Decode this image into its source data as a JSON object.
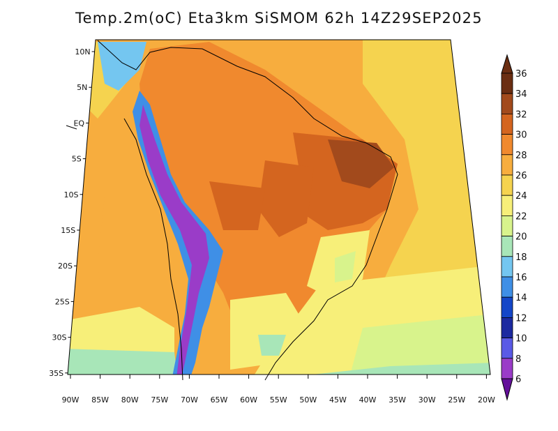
{
  "map": {
    "title": "Temp.2m(oC) Eta3km SiSMOM 62h 14Z29SEP2025",
    "region": "South America",
    "projection": "conic",
    "lat_labels": [
      "10N",
      "5N",
      "EQ",
      "5S",
      "10S",
      "15S",
      "20S",
      "25S",
      "30S",
      "35S"
    ],
    "lon_labels": [
      "90W",
      "85W",
      "80W",
      "75W",
      "70W",
      "65W",
      "60W",
      "55W",
      "50W",
      "45W",
      "40W",
      "35W",
      "30W",
      "25W",
      "20W"
    ],
    "colorbar": {
      "labels": [
        "36",
        "34",
        "32",
        "30",
        "28",
        "26",
        "24",
        "22",
        "20",
        "18",
        "16",
        "14",
        "12",
        "10",
        "8",
        "6"
      ],
      "colors": [
        "#6b2e12",
        "#a24a1c",
        "#d4651f",
        "#f0892e",
        "#f7ad3e",
        "#f5d34f",
        "#f7ef79",
        "#d8f38c",
        "#a8e6b8",
        "#74c6f0",
        "#3f8fe6",
        "#1446c8",
        "#1c2aa0",
        "#5a5ae6",
        "#9a3cc8",
        "#64109a"
      ]
    }
  }
}
